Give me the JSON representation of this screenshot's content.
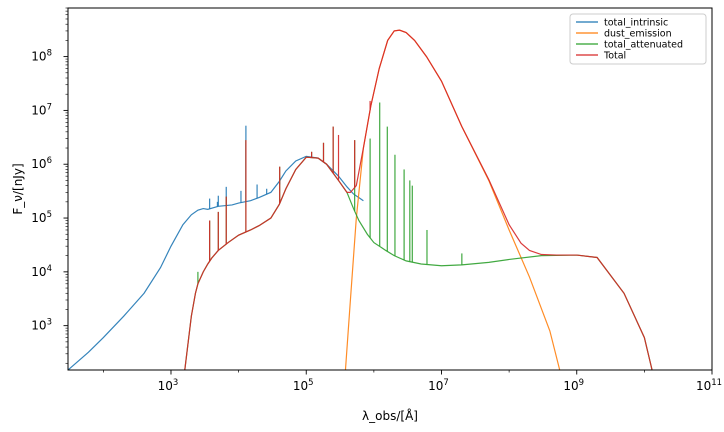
{
  "chart_data": {
    "type": "line",
    "title": "",
    "xlabel": "λ_obs/[Å]",
    "ylabel": "F_ν/[nJy]",
    "xscale": "log",
    "yscale": "log",
    "xlim": [
      30,
      100000000000
    ],
    "ylim": [
      150,
      800000000
    ],
    "grid": false,
    "legend_position": "top-right",
    "x_ticks": [
      {
        "value": 1000,
        "base": "10",
        "exp": "3"
      },
      {
        "value": 100000,
        "base": "10",
        "exp": "5"
      },
      {
        "value": 10000000,
        "base": "10",
        "exp": "7"
      },
      {
        "value": 1000000000,
        "base": "10",
        "exp": "9"
      },
      {
        "value": 100000000000,
        "base": "10",
        "exp": "11"
      }
    ],
    "y_ticks": [
      {
        "value": 1000,
        "base": "10",
        "exp": "3"
      },
      {
        "value": 10000,
        "base": "10",
        "exp": "4"
      },
      {
        "value": 100000,
        "base": "10",
        "exp": "5"
      },
      {
        "value": 1000000,
        "base": "10",
        "exp": "6"
      },
      {
        "value": 10000000,
        "base": "10",
        "exp": "7"
      },
      {
        "value": 100000000,
        "base": "10",
        "exp": "8"
      }
    ],
    "series": [
      {
        "name": "total_intrinsic",
        "color": "#1f77b4",
        "x": [
          30,
          60,
          100,
          200,
          400,
          700,
          1000,
          1500,
          2000,
          2500,
          3000,
          3500,
          5000,
          8000,
          10000,
          15000,
          20000,
          30000,
          40000,
          50000,
          70000,
          100000,
          150000,
          200000,
          300000,
          400000,
          500000,
          600000,
          700000
        ],
        "y": [
          150,
          320,
          600,
          1500,
          4000,
          12000,
          30000,
          75000,
          115000,
          140000,
          150000,
          145000,
          165000,
          175000,
          190000,
          210000,
          240000,
          300000,
          480000,
          750000,
          1150000,
          1400000,
          1300000,
          1000000,
          600000,
          380000,
          280000,
          240000,
          210000
        ],
        "spikes": [
          {
            "x": 3727,
            "y": 230000
          },
          {
            "x": 4861,
            "y": 200000
          },
          {
            "x": 5007,
            "y": 260000
          },
          {
            "x": 6563,
            "y": 380000
          },
          {
            "x": 10830,
            "y": 320000
          },
          {
            "x": 12818,
            "y": 5200000
          },
          {
            "x": 18751,
            "y": 420000
          },
          {
            "x": 26000,
            "y": 350000
          },
          {
            "x": 40500,
            "y": 420000
          }
        ]
      },
      {
        "name": "dust_emission",
        "color": "#ff7f0e",
        "x": [
          380000,
          450000,
          550000,
          700000,
          900000,
          1200000,
          1600000,
          2000000,
          2400000,
          3000000,
          4000000,
          6000000,
          10000000,
          20000000,
          50000000,
          100000000,
          200000000,
          400000000,
          560000000
        ],
        "y": [
          150,
          3000,
          100000,
          2000000,
          12000000,
          60000000,
          200000000,
          300000000,
          310000000,
          280000000,
          200000000,
          100000000,
          35000000,
          5000000,
          500000,
          60000,
          8000,
          800,
          150
        ]
      },
      {
        "name": "total_attenuated",
        "color": "#2ca02c",
        "x": [
          1600,
          2000,
          2300,
          2500,
          3000,
          3500,
          4000,
          5000,
          7000,
          10000,
          15000,
          20000,
          30000,
          40000,
          50000,
          70000,
          100000,
          150000,
          200000,
          300000,
          400000,
          500000,
          600000,
          800000,
          1000000,
          1500000,
          2000000,
          3000000,
          5000000,
          10000000,
          20000000,
          50000000,
          100000000,
          300000000,
          1000000000,
          2000000000,
          5000000000,
          10000000000,
          13000000000
        ],
        "y": [
          150,
          1500,
          4000,
          6000,
          10000,
          14000,
          18000,
          25000,
          35000,
          48000,
          60000,
          72000,
          100000,
          180000,
          350000,
          800000,
          1350000,
          1300000,
          1000000,
          500000,
          300000,
          150000,
          90000,
          50000,
          35000,
          25000,
          20000,
          16000,
          14000,
          13000,
          13500,
          15000,
          17000,
          20000,
          20500,
          18500,
          4000,
          600,
          150
        ],
        "spikes": [
          {
            "x": 2500,
            "y": 10000
          },
          {
            "x": 3727,
            "y": 90000
          },
          {
            "x": 5007,
            "y": 130000
          },
          {
            "x": 6563,
            "y": 250000
          },
          {
            "x": 12818,
            "y": 2800000
          },
          {
            "x": 40500,
            "y": 900000
          },
          {
            "x": 120000,
            "y": 1700000
          },
          {
            "x": 180000,
            "y": 2500000
          },
          {
            "x": 250000,
            "y": 5000000
          },
          {
            "x": 520000,
            "y": 2800000
          },
          {
            "x": 880000,
            "y": 3000000
          },
          {
            "x": 1220000,
            "y": 14000000
          },
          {
            "x": 1580000,
            "y": 5000000
          },
          {
            "x": 2050000,
            "y": 1500000
          },
          {
            "x": 2800000,
            "y": 800000
          },
          {
            "x": 3400000,
            "y": 500000
          },
          {
            "x": 3700000,
            "y": 400000
          },
          {
            "x": 6100000,
            "y": 60000
          },
          {
            "x": 20000000,
            "y": 22000
          }
        ]
      },
      {
        "name": "Total",
        "color": "#d62728",
        "x": [
          1600,
          2000,
          2300,
          2500,
          3000,
          3500,
          4000,
          5000,
          7000,
          10000,
          15000,
          20000,
          30000,
          40000,
          50000,
          70000,
          100000,
          150000,
          200000,
          300000,
          400000,
          450000,
          550000,
          700000,
          900000,
          1200000,
          1600000,
          2000000,
          2400000,
          3000000,
          4000000,
          6000000,
          10000000,
          20000000,
          50000000,
          100000000,
          150000000,
          200000000,
          300000000,
          500000000,
          1000000000,
          2000000000,
          5000000000,
          10000000000,
          13000000000
        ],
        "y": [
          150,
          1500,
          4000,
          6000,
          10000,
          14000,
          18000,
          25000,
          35000,
          48000,
          60000,
          72000,
          100000,
          180000,
          350000,
          800000,
          1350000,
          1300000,
          1000000,
          500000,
          300000,
          300000,
          400000,
          2000000,
          12000000,
          60000000,
          200000000,
          300000000,
          310000000,
          280000000,
          200000000,
          100000000,
          35000000,
          5000000,
          520000,
          75000,
          34000,
          25000,
          21000,
          20500,
          20500,
          18500,
          4000,
          600,
          150
        ],
        "spikes": [
          {
            "x": 3727,
            "y": 90000
          },
          {
            "x": 5007,
            "y": 130000
          },
          {
            "x": 6563,
            "y": 250000
          },
          {
            "x": 12818,
            "y": 2800000
          },
          {
            "x": 40500,
            "y": 900000
          },
          {
            "x": 120000,
            "y": 1700000
          },
          {
            "x": 180000,
            "y": 2500000
          },
          {
            "x": 250000,
            "y": 5000000
          },
          {
            "x": 300000,
            "y": 3500000
          },
          {
            "x": 520000,
            "y": 2800000
          },
          {
            "x": 880000,
            "y": 15000000
          }
        ]
      }
    ]
  }
}
